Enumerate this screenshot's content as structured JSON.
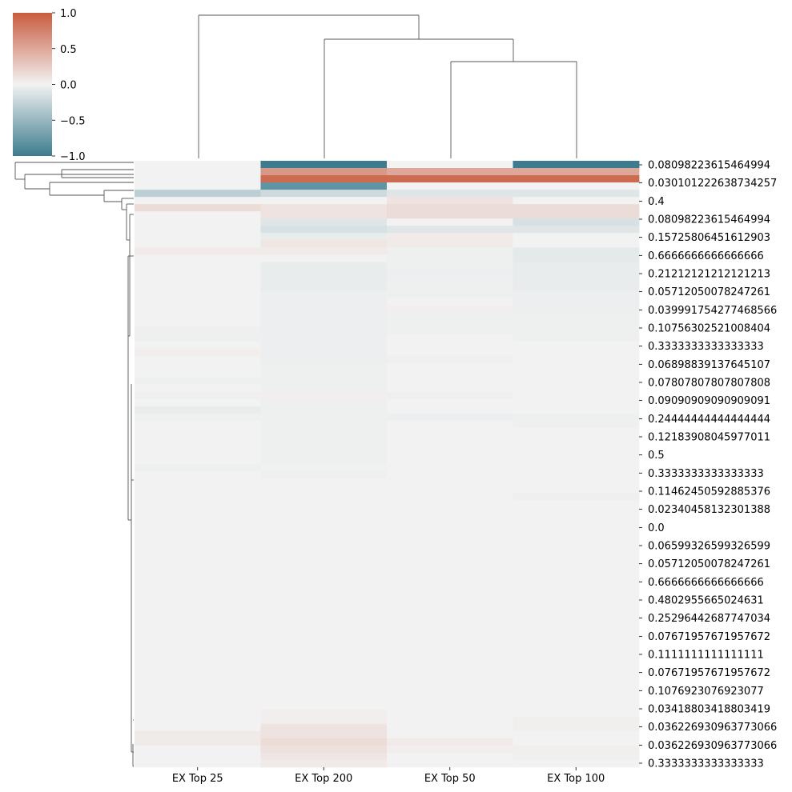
{
  "chart_data": {
    "type": "heatmap",
    "title": "",
    "xlabel": "",
    "ylabel": "",
    "columns": [
      "EX Top 25",
      "EX Top 200",
      "EX Top 50",
      "EX Top 100"
    ],
    "row_tick_labels": [
      "0.08098223615464994",
      "0.030101222638734257",
      "0.4",
      "0.08098223615464994",
      "0.15725806451612903",
      "0.6666666666666666",
      "0.21212121212121213",
      "0.05712050078247261",
      "0.03999175427746856​6",
      "0.10756302521008404",
      "0.3333333333333333",
      "0.06898839137645107",
      "0.07807807807807808",
      "0.09090909090909091",
      "0.24444444444444444",
      "0.12183908045977011",
      "0.5",
      "0.3333333333333333",
      "0.11462450592885376",
      "0.023404581323013​88",
      "0.0",
      "0.06599326599326599",
      "0.05712050078247261",
      "0.6666666666666666",
      "0.4802955665024631",
      "0.25296442687747034",
      "0.07671957671957672",
      "0.1111111111111111",
      "0.07671957671957672",
      "0.1076923076923077",
      "0.03418803418803419",
      "0.036226930963773066",
      "0.036226930963773066",
      "0.3333333333333333"
    ],
    "num_rows": 84,
    "values_by_column": [
      [
        0,
        0,
        0,
        0,
        -0.3,
        0,
        0.15,
        0,
        0,
        0,
        0,
        0,
        0.05,
        0,
        0,
        0,
        0,
        0,
        0,
        0,
        0,
        0,
        0,
        -0.02,
        -0.02,
        0,
        0.03,
        0,
        0,
        0,
        -0.02,
        0,
        -0.02,
        0,
        -0.05,
        -0.02,
        0,
        0,
        0,
        0,
        0,
        0,
        -0.02,
        0,
        0,
        0,
        0,
        0,
        0,
        0,
        0,
        0,
        0,
        0,
        0,
        0,
        0,
        0,
        0,
        0,
        0,
        0,
        0,
        0,
        0,
        0,
        0,
        0,
        0,
        0,
        0,
        0,
        0,
        0,
        0,
        0,
        0,
        0,
        0,
        0.05,
        0.05,
        0,
        0,
        0
      ],
      [
        -1,
        0.6,
        0.9,
        -0.8,
        -0.2,
        0,
        0.1,
        0.1,
        -0.1,
        -0.15,
        -0.05,
        0.08,
        0.05,
        0,
        -0.05,
        -0.05,
        -0.05,
        -0.05,
        -0.03,
        -0.03,
        -0.03,
        -0.03,
        -0.03,
        -0.03,
        -0.03,
        -0.03,
        -0.03,
        -0.03,
        -0.02,
        -0.02,
        -0.02,
        -0.02,
        0.03,
        -0.02,
        -0.02,
        -0.02,
        -0.02,
        -0.02,
        -0.02,
        -0.02,
        -0.02,
        -0.02,
        -0.01,
        0.02,
        0,
        0,
        0,
        0,
        0,
        0,
        0,
        0,
        0,
        0,
        0,
        0,
        0,
        0,
        0,
        0,
        0,
        0,
        0,
        0,
        0,
        0,
        0,
        0,
        0,
        0,
        0,
        0,
        0,
        0,
        0,
        0,
        0.03,
        0.03,
        0.1,
        0.1,
        0.15,
        0.12,
        0.08,
        0.05
      ],
      [
        0,
        0.5,
        0.9,
        0,
        -0.1,
        0.1,
        0.15,
        0.15,
        0,
        -0.1,
        0.05,
        0.05,
        -0.02,
        -0.02,
        -0.02,
        -0.03,
        -0.02,
        -0.02,
        -0.02,
        0,
        0.03,
        -0.02,
        -0.02,
        -0.02,
        0,
        0,
        0,
        -0.02,
        0,
        0,
        0,
        0,
        -0.02,
        0,
        0,
        -0.03,
        0,
        0,
        0,
        0,
        0,
        0,
        0,
        0,
        0,
        0,
        0,
        0,
        0,
        0,
        0,
        0,
        0,
        0,
        0,
        0,
        0,
        0,
        0,
        0,
        0,
        0,
        0,
        0,
        0,
        0,
        0,
        0,
        0,
        0,
        0,
        0,
        0,
        0,
        0,
        0,
        0,
        0,
        0,
        0,
        0.05,
        0.03,
        0,
        0
      ],
      [
        -1,
        0.5,
        0.9,
        0,
        -0.1,
        0,
        0.15,
        0.15,
        -0.15,
        -0.1,
        0,
        0,
        -0.08,
        -0.08,
        -0.05,
        -0.05,
        -0.05,
        -0.05,
        -0.03,
        -0.03,
        -0.03,
        -0.02,
        -0.02,
        -0.02,
        -0.02,
        0,
        0,
        0,
        0,
        0,
        0,
        0,
        0,
        0,
        0,
        -0.02,
        -0.02,
        0,
        0,
        0,
        0,
        0,
        0,
        0,
        0,
        0,
        0.02,
        0,
        0,
        0,
        0,
        0,
        0,
        0,
        0,
        0,
        0,
        0,
        0,
        0,
        0,
        0,
        0,
        0,
        0,
        0,
        0,
        0,
        0,
        0,
        0,
        0,
        0,
        0,
        0,
        0,
        0,
        0.02,
        0.02,
        0,
        0,
        0.03,
        0.02,
        0
      ]
    ],
    "colorbar": {
      "ticks": [
        "1.0",
        "0.5",
        "0.0",
        "−0.5",
        "−1.0"
      ],
      "range": [
        -1,
        1
      ],
      "colors": {
        "negative": "#3d7c8e",
        "neutral": "#f2f2f2",
        "positive": "#c95c3f"
      }
    },
    "column_dendrogram": "top",
    "row_dendrogram": "left"
  }
}
